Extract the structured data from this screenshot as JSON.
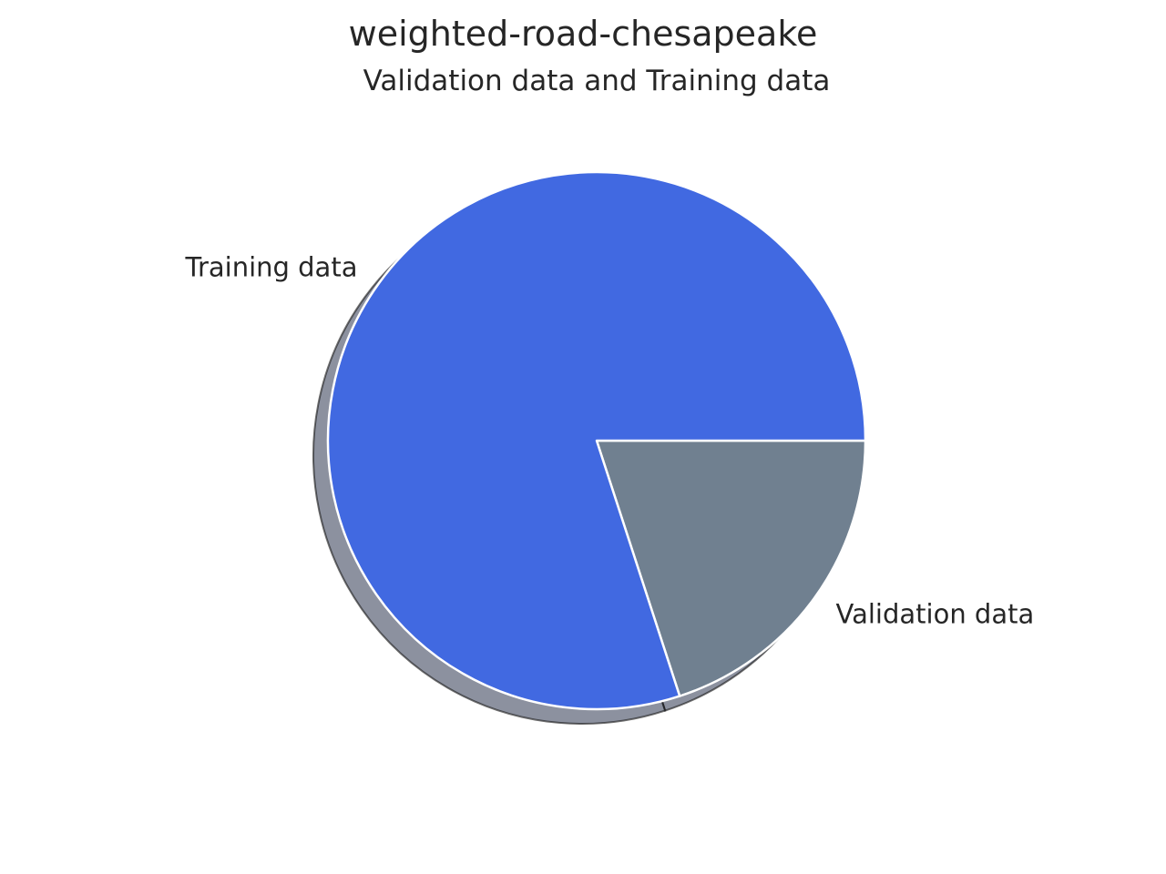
{
  "figure": {
    "title": "weighted-road-chesapeake"
  },
  "chart_data": {
    "type": "pie",
    "title": "Validation data and Training data",
    "labels": [
      "Validation data",
      "Training data"
    ],
    "values": [
      20,
      80
    ],
    "colors": [
      "#708090",
      "#4169E1"
    ],
    "start_angle_deg": 0,
    "direction": "clockwise",
    "shadow": true,
    "wedge_edge_color": "#ffffff"
  }
}
